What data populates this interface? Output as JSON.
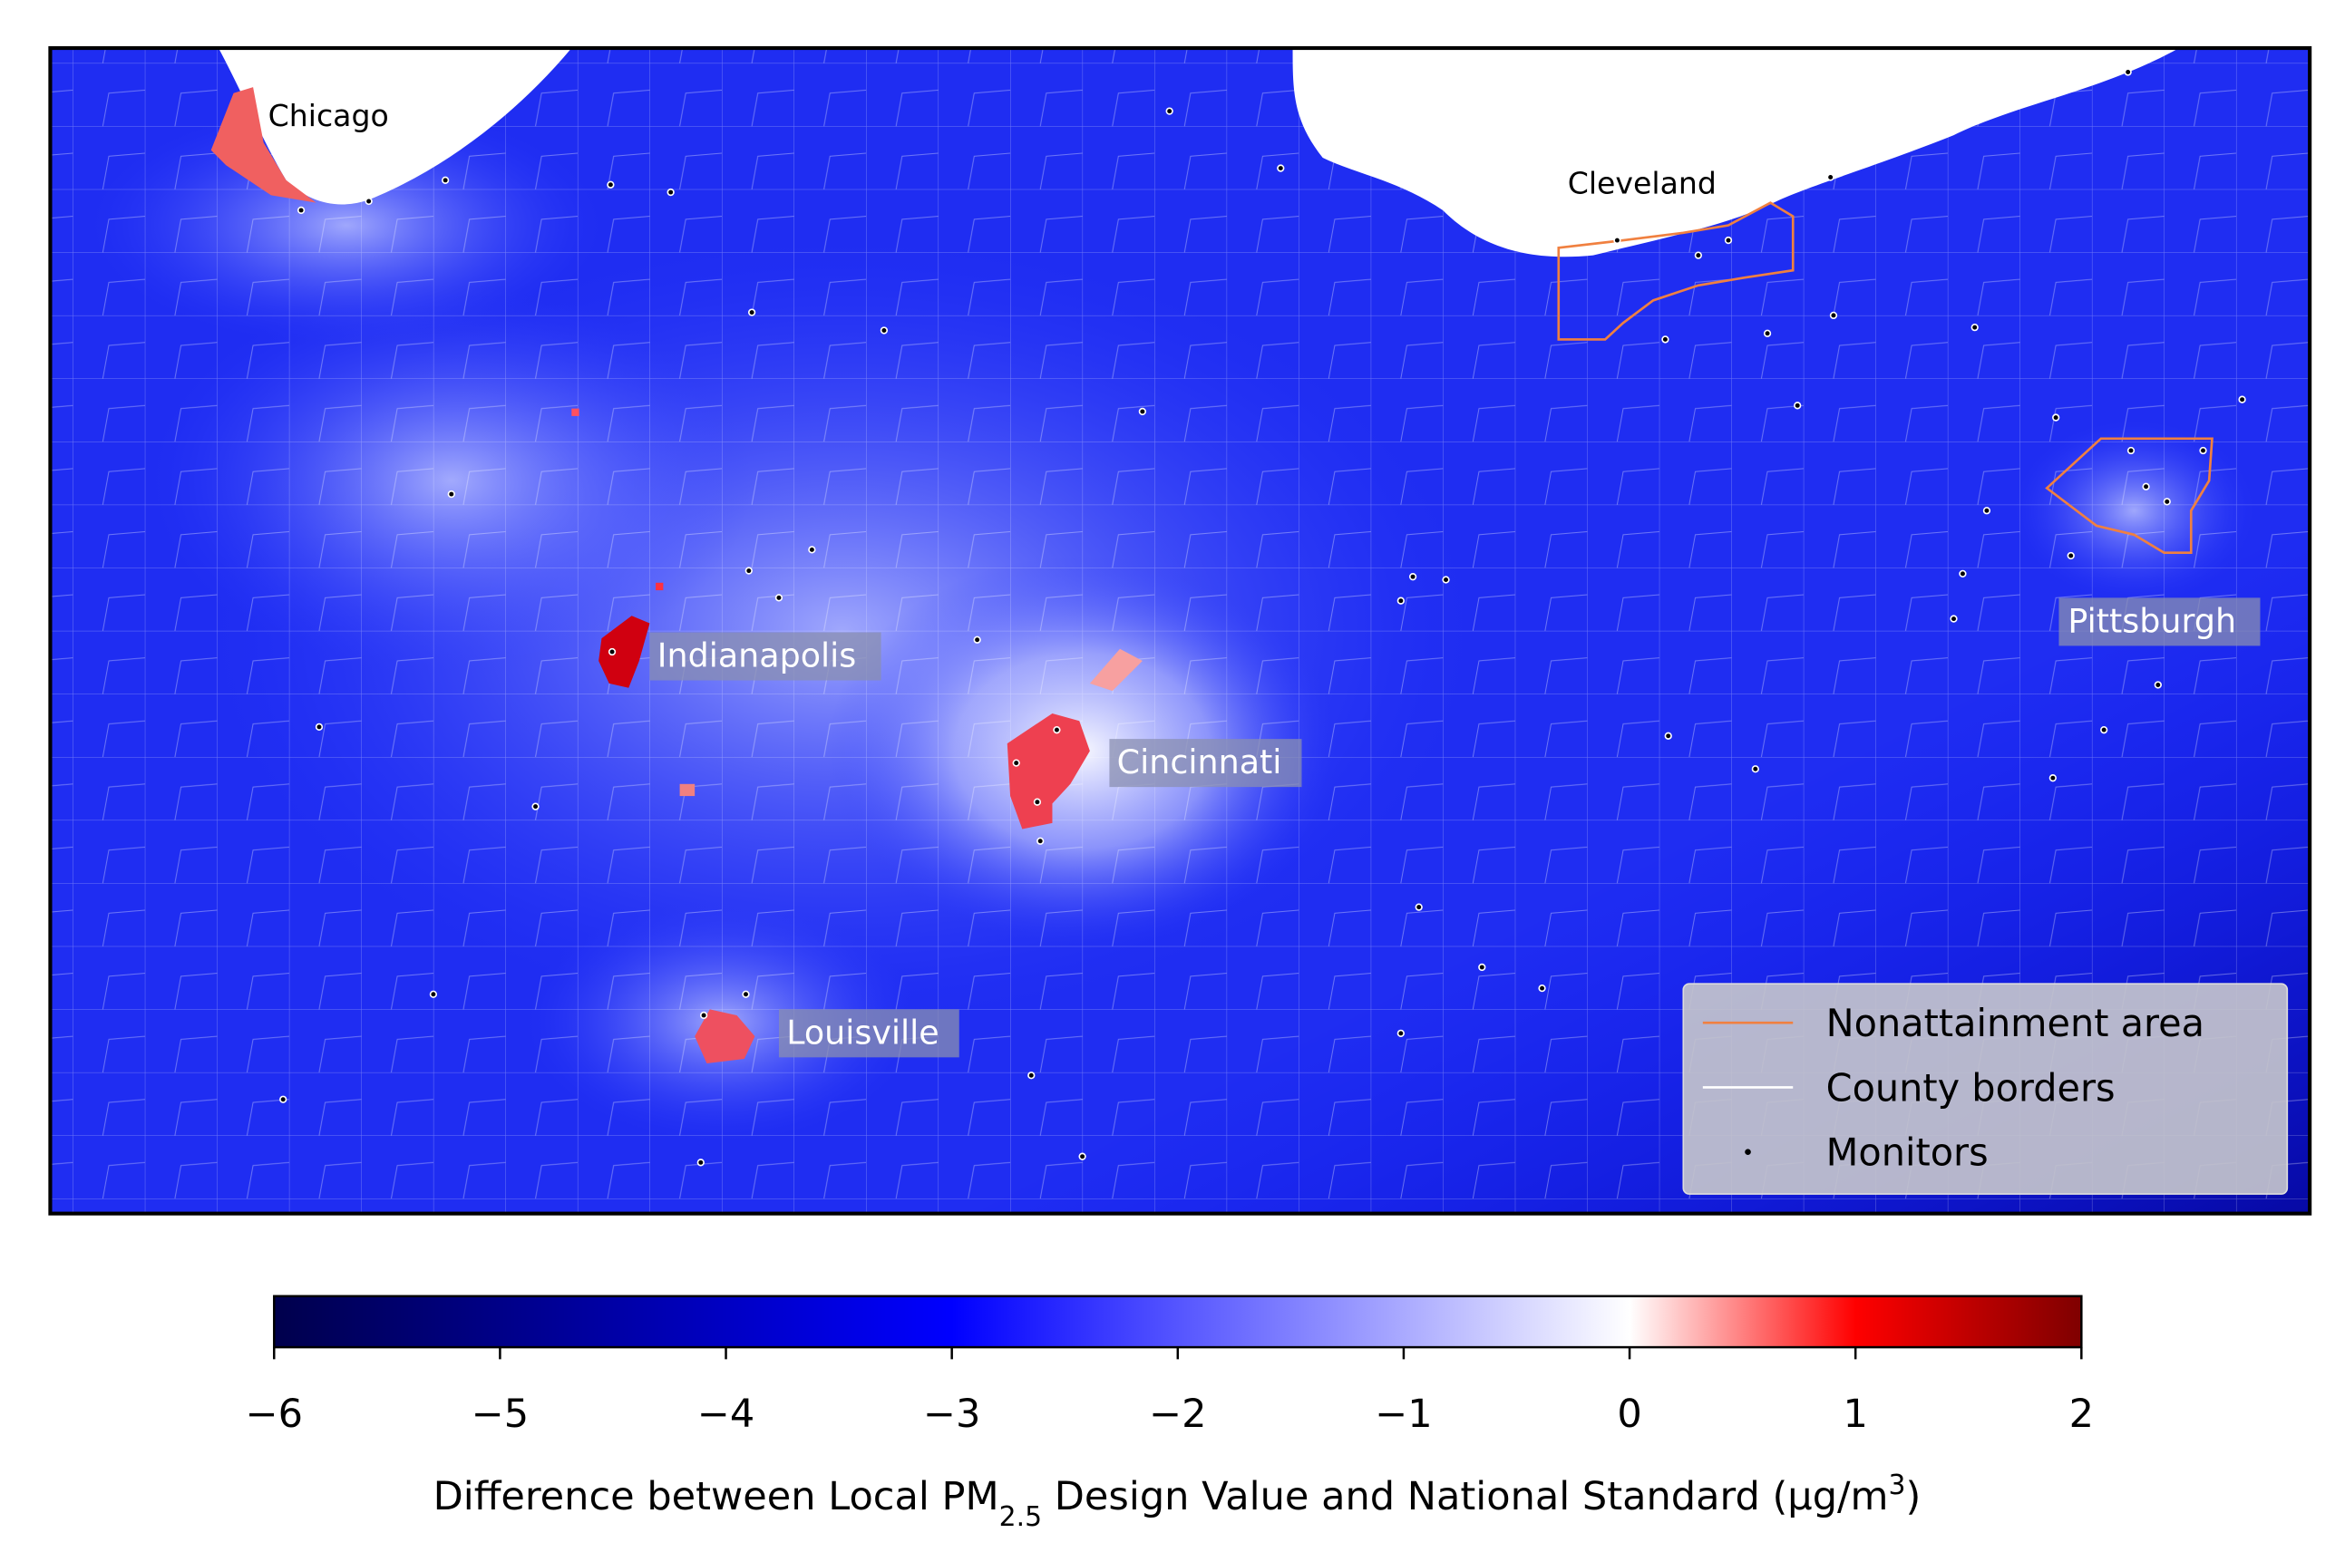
{
  "map": {
    "cities": [
      "Chicago",
      "Cleveland",
      "Pittsburgh",
      "Indianapolis",
      "Cincinnati",
      "Louisville"
    ],
    "legend": [
      "Nonattainment area",
      "County borders",
      "Monitors"
    ],
    "colorbar": {
      "lim": [
        -6,
        2
      ],
      "ticks": [
        {
          "value": -6,
          "label": "−6"
        },
        {
          "value": -5,
          "label": "−5"
        },
        {
          "value": -4,
          "label": "−4"
        },
        {
          "value": -3,
          "label": "−3"
        },
        {
          "value": -2,
          "label": "−2"
        },
        {
          "value": -1,
          "label": "−1"
        },
        0,
        1,
        2
      ],
      "colormap": [
        {
          "value": -6,
          "color": "#00004c"
        },
        {
          "value": -3,
          "color": "#0000ff"
        },
        {
          "value": 0,
          "color": "#ffffff"
        },
        {
          "value": 1,
          "color": "#ff0000"
        },
        {
          "value": 2,
          "color": "#7f0000"
        }
      ],
      "label": [
        "Difference between Local PM",
        "2.5",
        " Design Value and National Standard (μg/m",
        "3",
        ")"
      ]
    }
  }
}
